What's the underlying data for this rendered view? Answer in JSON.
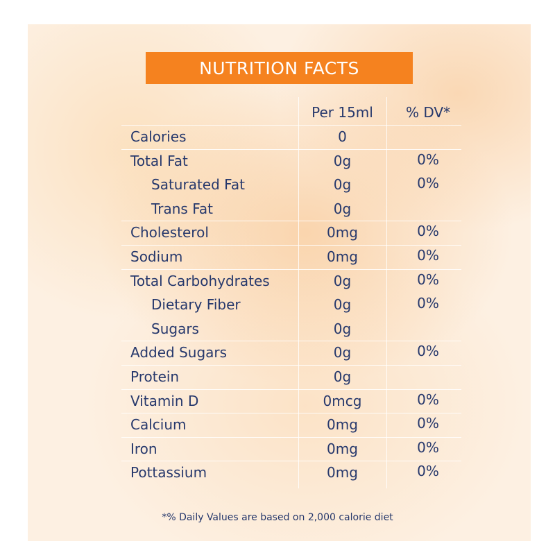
{
  "header": {
    "title": "NUTRITION FACTS"
  },
  "table": {
    "columns": [
      "Per 15ml",
      "% DV*"
    ],
    "rows": [
      {
        "name": "Calories",
        "amount": "0"
      },
      {
        "name": "Total Fat",
        "amount": "0g",
        "dv": "0%",
        "sub": [
          {
            "name": "Saturated Fat",
            "amount": "0g",
            "dv": "0%"
          },
          {
            "name": "Trans Fat",
            "amount": "0g"
          }
        ]
      },
      {
        "name": "Cholesterol",
        "amount": "0mg",
        "dv": "0%"
      },
      {
        "name": "Sodium",
        "amount": "0mg",
        "dv": "0%"
      },
      {
        "name": "Total Carbohydrates",
        "amount": "0g",
        "dv": "0%",
        "sub": [
          {
            "name": "Dietary Fiber",
            "amount": "0g",
            "dv": "0%"
          },
          {
            "name": "Sugars",
            "amount": "0g"
          }
        ]
      },
      {
        "name": "Added Sugars",
        "amount": "0g",
        "dv": "0%"
      },
      {
        "name": "Protein",
        "amount": "0g"
      },
      {
        "name": "Vitamin D",
        "amount": "0mcg",
        "dv": "0%"
      },
      {
        "name": "Calcium",
        "amount": "0mg",
        "dv": "0%"
      },
      {
        "name": "Iron",
        "amount": "0mg",
        "dv": "0%"
      },
      {
        "name": "Pottassium",
        "amount": "0mg",
        "dv": "0%"
      }
    ]
  },
  "footnote": "*% Daily Values are based on 2,000 calorie diet"
}
